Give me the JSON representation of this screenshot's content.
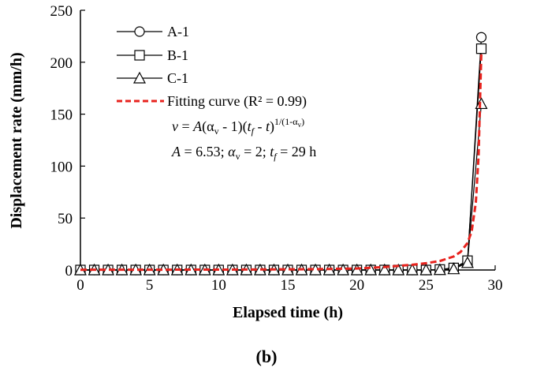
{
  "chart_data": {
    "type": "line",
    "xlabel": "Elapsed time (h)",
    "ylabel": "Displacement rate (mm/h)",
    "xlim": [
      0,
      30
    ],
    "ylim": [
      0,
      250
    ],
    "xticks": [
      0,
      5,
      10,
      15,
      20,
      25,
      30
    ],
    "yticks": [
      0,
      50,
      100,
      150,
      200,
      250
    ],
    "grid": false,
    "legend_position": "top-left",
    "series": [
      {
        "name": "A-1",
        "marker": "circle",
        "color": "#000000",
        "x": [
          0,
          1,
          2,
          3,
          4,
          5,
          6,
          7,
          8,
          9,
          10,
          11,
          12,
          13,
          14,
          15,
          16,
          17,
          18,
          19,
          20,
          21,
          22,
          23,
          24,
          25,
          26,
          27,
          28,
          29
        ],
        "y": [
          0,
          0,
          0,
          0,
          0,
          0,
          0,
          0,
          0,
          0,
          0,
          0,
          0,
          0,
          0,
          0,
          0,
          0,
          0,
          0,
          0,
          0,
          0,
          0,
          0,
          0,
          0.3,
          2,
          8,
          224
        ]
      },
      {
        "name": "B-1",
        "marker": "square",
        "color": "#000000",
        "x": [
          0,
          1,
          2,
          3,
          4,
          5,
          6,
          7,
          8,
          9,
          10,
          11,
          12,
          13,
          14,
          15,
          16,
          17,
          18,
          19,
          20,
          21,
          22,
          23,
          24,
          25,
          26,
          27,
          28,
          29
        ],
        "y": [
          0,
          0,
          0,
          0,
          0,
          0,
          0,
          0,
          0,
          0,
          0,
          0,
          0,
          0,
          0,
          0,
          0,
          0,
          0,
          0,
          0,
          0,
          0,
          0,
          0,
          0,
          0.5,
          2,
          9,
          213
        ]
      },
      {
        "name": "C-1",
        "marker": "triangle",
        "color": "#000000",
        "x": [
          0,
          1,
          2,
          3,
          4,
          5,
          6,
          7,
          8,
          9,
          10,
          11,
          12,
          13,
          14,
          15,
          16,
          17,
          18,
          19,
          20,
          21,
          22,
          23,
          24,
          25,
          26,
          27,
          28,
          29
        ],
        "y": [
          0,
          0,
          0,
          0,
          0,
          0,
          0,
          0,
          0,
          0,
          0,
          0,
          0,
          0,
          0,
          0,
          0,
          0,
          0,
          0,
          0,
          0,
          0,
          0,
          0,
          0,
          0.2,
          1,
          7,
          160
        ]
      },
      {
        "name": "Fitting curve (R² = 0.99)",
        "style": "dashed",
        "color": "#e8231e",
        "x": [
          0,
          2,
          4,
          6,
          8,
          10,
          12,
          14,
          16,
          18,
          20,
          22,
          24,
          25,
          26,
          27,
          27.5,
          28,
          28.3,
          28.6,
          28.8,
          29
        ],
        "y": [
          0.25,
          0.27,
          0.29,
          0.33,
          0.36,
          0.41,
          0.48,
          0.58,
          0.72,
          0.96,
          1.44,
          2.88,
          5.0,
          6.5,
          8.7,
          13,
          17.4,
          26,
          37,
          65,
          110,
          210
        ]
      }
    ],
    "annotations": {
      "formula": "v = A(αv - 1)(tf - t)1/(1-αv)",
      "params": "A = 6.53; αv = 2; tf = 29 h"
    }
  },
  "caption": "(b)"
}
